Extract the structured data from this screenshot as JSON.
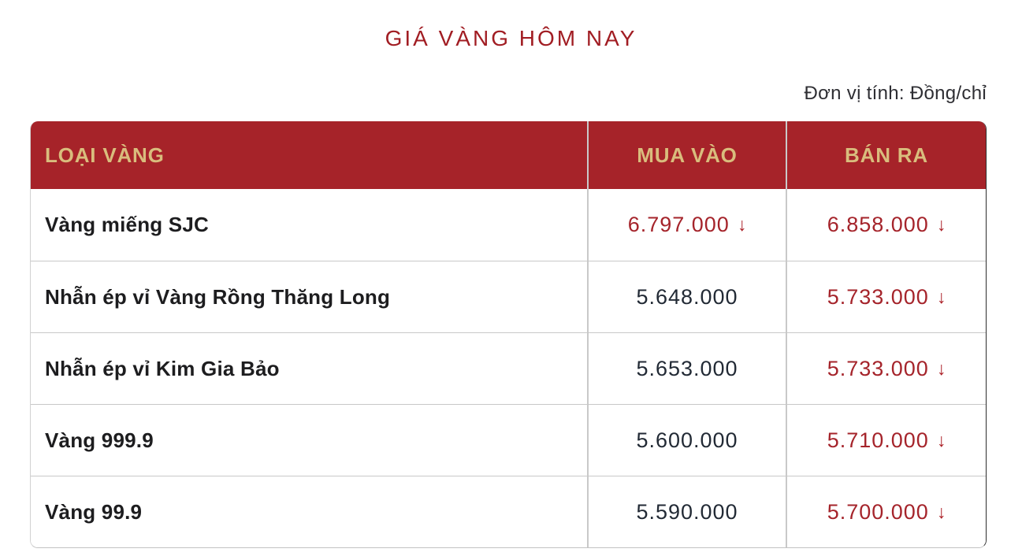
{
  "page": {
    "title": "GIÁ VÀNG HÔM NAY",
    "unit_label": "Đơn vị tính: Đồng/chỉ"
  },
  "icons": {
    "arrow_down": "↓"
  },
  "table": {
    "columns": [
      "LOẠI VÀNG",
      "MUA VÀO",
      "BÁN RA"
    ],
    "rows": [
      {
        "name": "Vàng miếng SJC",
        "buy": "6.797.000",
        "buy_trend": "down",
        "sell": "6.858.000",
        "sell_trend": "down"
      },
      {
        "name": "Nhẫn ép vỉ Vàng Rồng Thăng Long",
        "buy": "5.648.000",
        "buy_trend": "none",
        "sell": "5.733.000",
        "sell_trend": "down"
      },
      {
        "name": "Nhẫn ép vỉ Kim Gia Bảo",
        "buy": "5.653.000",
        "buy_trend": "none",
        "sell": "5.733.000",
        "sell_trend": "down"
      },
      {
        "name": "Vàng 999.9",
        "buy": "5.600.000",
        "buy_trend": "none",
        "sell": "5.710.000",
        "sell_trend": "down"
      },
      {
        "name": "Vàng 99.9",
        "buy": "5.590.000",
        "buy_trend": "none",
        "sell": "5.700.000",
        "sell_trend": "down"
      }
    ]
  },
  "colors": {
    "header_bg": "#A62329",
    "header_text": "#D9BD7D",
    "title_text": "#A11D23",
    "price_down": "#A5242B",
    "label_text": "#1d1d1f"
  }
}
